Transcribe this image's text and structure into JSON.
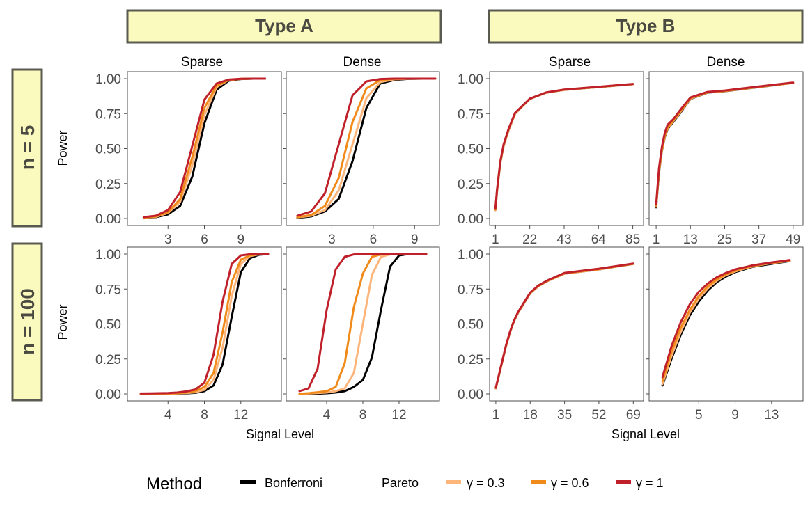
{
  "facet_columns": [
    "Type A",
    "Type B"
  ],
  "facet_rows": [
    "n = 5",
    "n = 100"
  ],
  "subcolumns": [
    "Sparse",
    "Dense"
  ],
  "x_axis_title": "Signal Level",
  "y_axis_title": "Power",
  "legend": {
    "title": "Method",
    "bonferroni_label": "Bonferroni",
    "group_label": "Pareto",
    "gamma_labels": [
      "γ = 0.3",
      "γ = 0.6",
      "γ = 1"
    ]
  },
  "colors": {
    "Bonferroni": "#000000",
    "gamma_0.3": "#fdb57a",
    "gamma_0.6": "#f08a1a",
    "gamma_1": "#c0202a"
  },
  "chart_data": [
    {
      "type": "line",
      "row": "n = 5",
      "column": "Type A",
      "subcolumn": "Sparse",
      "xlim": [
        0,
        12
      ],
      "ylim": [
        0,
        1
      ],
      "x_ticks": [
        3,
        6,
        9
      ],
      "y_ticks": [
        0,
        0.25,
        0.5,
        0.75,
        1
      ],
      "y_tick_labels": [
        "0.00",
        "0.25",
        "0.50",
        "0.75",
        "1.00"
      ],
      "x": [
        1,
        2,
        3,
        4,
        5,
        6,
        7,
        8,
        9,
        10,
        11
      ],
      "series": [
        {
          "name": "Bonferroni",
          "values": [
            0.005,
            0.01,
            0.03,
            0.09,
            0.3,
            0.68,
            0.92,
            0.985,
            0.997,
            1.0,
            1.0
          ]
        },
        {
          "name": "γ = 0.3",
          "values": [
            0.006,
            0.012,
            0.04,
            0.12,
            0.38,
            0.74,
            0.94,
            0.99,
            0.998,
            1.0,
            1.0
          ]
        },
        {
          "name": "γ = 0.6",
          "values": [
            0.007,
            0.015,
            0.045,
            0.14,
            0.44,
            0.79,
            0.95,
            0.99,
            0.999,
            1.0,
            1.0
          ]
        },
        {
          "name": "γ = 1",
          "values": [
            0.01,
            0.02,
            0.06,
            0.19,
            0.52,
            0.85,
            0.965,
            0.993,
            0.999,
            1.0,
            1.0
          ]
        }
      ]
    },
    {
      "type": "line",
      "row": "n = 5",
      "column": "Type A",
      "subcolumn": "Dense",
      "xlim": [
        0,
        10.5
      ],
      "ylim": [
        0,
        1
      ],
      "x_ticks": [
        3,
        6,
        9
      ],
      "y_ticks": [
        0,
        0.25,
        0.5,
        0.75,
        1
      ],
      "x": [
        0.5,
        1.5,
        2.5,
        3.5,
        4.5,
        5.5,
        6.5,
        7.5,
        8.5,
        9.5,
        10.5
      ],
      "series": [
        {
          "name": "Bonferroni",
          "values": [
            0.005,
            0.015,
            0.05,
            0.14,
            0.41,
            0.79,
            0.965,
            0.99,
            0.998,
            1.0,
            1.0
          ]
        },
        {
          "name": "γ = 0.3",
          "values": [
            0.008,
            0.02,
            0.06,
            0.2,
            0.53,
            0.86,
            0.975,
            0.995,
            0.999,
            1.0,
            1.0
          ]
        },
        {
          "name": "γ = 0.6",
          "values": [
            0.01,
            0.025,
            0.09,
            0.29,
            0.69,
            0.93,
            0.99,
            0.998,
            1.0,
            1.0,
            1.0
          ]
        },
        {
          "name": "γ = 1",
          "values": [
            0.02,
            0.05,
            0.18,
            0.53,
            0.88,
            0.98,
            0.997,
            1.0,
            1.0,
            1.0,
            1.0
          ]
        }
      ]
    },
    {
      "type": "line",
      "row": "n = 5",
      "column": "Type B",
      "subcolumn": "Sparse",
      "xlim": [
        0,
        89
      ],
      "ylim": [
        0,
        1
      ],
      "x_ticks": [
        1,
        22,
        43,
        64,
        85
      ],
      "y_ticks": [
        0,
        0.25,
        0.5,
        0.75,
        1
      ],
      "x": [
        1,
        2,
        4,
        6,
        9,
        13,
        22,
        32,
        43,
        64,
        85
      ],
      "series": [
        {
          "name": "Bonferroni",
          "values": [
            0.06,
            0.2,
            0.4,
            0.52,
            0.63,
            0.75,
            0.855,
            0.9,
            0.92,
            0.94,
            0.96
          ]
        },
        {
          "name": "γ = 0.3",
          "values": [
            0.06,
            0.2,
            0.4,
            0.52,
            0.63,
            0.75,
            0.855,
            0.9,
            0.92,
            0.94,
            0.96
          ]
        },
        {
          "name": "γ = 0.6",
          "values": [
            0.065,
            0.205,
            0.405,
            0.525,
            0.635,
            0.752,
            0.856,
            0.9,
            0.921,
            0.941,
            0.961
          ]
        },
        {
          "name": "γ = 1",
          "values": [
            0.07,
            0.21,
            0.41,
            0.53,
            0.64,
            0.755,
            0.857,
            0.901,
            0.922,
            0.942,
            0.962
          ]
        }
      ]
    },
    {
      "type": "line",
      "row": "n = 5",
      "column": "Type B",
      "subcolumn": "Dense",
      "xlim": [
        0,
        51
      ],
      "ylim": [
        0,
        1
      ],
      "x_ticks": [
        1,
        13,
        25,
        37,
        49
      ],
      "y_ticks": [
        0,
        0.25,
        0.5,
        0.75,
        1
      ],
      "x": [
        1,
        2,
        3,
        4,
        5,
        7,
        10,
        13,
        19,
        25,
        37,
        49
      ],
      "series": [
        {
          "name": "Bonferroni",
          "values": [
            0.08,
            0.33,
            0.48,
            0.58,
            0.64,
            0.69,
            0.77,
            0.855,
            0.9,
            0.91,
            0.94,
            0.97
          ]
        },
        {
          "name": "γ = 0.3",
          "values": [
            0.085,
            0.335,
            0.485,
            0.585,
            0.645,
            0.695,
            0.775,
            0.857,
            0.901,
            0.911,
            0.941,
            0.97
          ]
        },
        {
          "name": "γ = 0.6",
          "values": [
            0.09,
            0.34,
            0.49,
            0.59,
            0.65,
            0.7,
            0.78,
            0.86,
            0.902,
            0.912,
            0.942,
            0.97
          ]
        },
        {
          "name": "γ = 1",
          "values": [
            0.1,
            0.36,
            0.51,
            0.61,
            0.67,
            0.71,
            0.79,
            0.865,
            0.905,
            0.915,
            0.944,
            0.972
          ]
        }
      ]
    },
    {
      "type": "line",
      "row": "n = 100",
      "column": "Type A",
      "subcolumn": "Sparse",
      "xlim": [
        0,
        16
      ],
      "ylim": [
        0,
        1
      ],
      "x_ticks": [
        4,
        8,
        12
      ],
      "y_ticks": [
        0,
        0.25,
        0.5,
        0.75,
        1
      ],
      "y_tick_labels": [
        "0.00",
        "0.25",
        "0.50",
        "0.75",
        "1.00"
      ],
      "x": [
        1,
        2,
        3,
        4,
        5,
        6,
        7,
        8,
        9,
        10,
        11,
        12,
        13,
        14,
        15
      ],
      "series": [
        {
          "name": "Bonferroni",
          "values": [
            0.0,
            0.0,
            0.0,
            0.0,
            0.002,
            0.004,
            0.008,
            0.02,
            0.06,
            0.21,
            0.55,
            0.87,
            0.97,
            0.995,
            1.0
          ]
        },
        {
          "name": "γ = 0.3",
          "values": [
            0.0,
            0.0,
            0.001,
            0.002,
            0.003,
            0.006,
            0.012,
            0.03,
            0.1,
            0.33,
            0.7,
            0.93,
            0.985,
            0.998,
            1.0
          ]
        },
        {
          "name": "γ = 0.6",
          "values": [
            0.001,
            0.001,
            0.002,
            0.003,
            0.005,
            0.01,
            0.02,
            0.05,
            0.15,
            0.44,
            0.8,
            0.96,
            0.99,
            0.999,
            1.0
          ]
        },
        {
          "name": "γ = 1",
          "values": [
            0.003,
            0.004,
            0.005,
            0.006,
            0.01,
            0.018,
            0.032,
            0.08,
            0.28,
            0.66,
            0.93,
            0.99,
            0.998,
            1.0,
            1.0
          ]
        }
      ]
    },
    {
      "type": "line",
      "row": "n = 100",
      "column": "Type A",
      "subcolumn": "Dense",
      "xlim": [
        0,
        16
      ],
      "ylim": [
        0,
        1
      ],
      "x_ticks": [
        4,
        8,
        12
      ],
      "y_ticks": [
        0,
        0.25,
        0.5,
        0.75,
        1
      ],
      "x": [
        1,
        2,
        3,
        4,
        5,
        6,
        7,
        8,
        9,
        10,
        11,
        12,
        13,
        14,
        15
      ],
      "series": [
        {
          "name": "Bonferroni",
          "values": [
            0.0,
            0.0,
            0.002,
            0.005,
            0.01,
            0.02,
            0.05,
            0.1,
            0.26,
            0.6,
            0.91,
            0.99,
            1.0,
            1.0,
            1.0
          ]
        },
        {
          "name": "γ = 0.3",
          "values": [
            0.0,
            0.003,
            0.006,
            0.01,
            0.02,
            0.04,
            0.15,
            0.5,
            0.85,
            0.98,
            0.997,
            1.0,
            1.0,
            1.0,
            1.0
          ]
        },
        {
          "name": "γ = 0.6",
          "values": [
            0.001,
            0.005,
            0.012,
            0.02,
            0.05,
            0.22,
            0.62,
            0.86,
            0.98,
            0.997,
            1.0,
            1.0,
            1.0,
            1.0,
            1.0
          ]
        },
        {
          "name": "γ = 1",
          "values": [
            0.02,
            0.04,
            0.18,
            0.6,
            0.89,
            0.98,
            0.997,
            1.0,
            1.0,
            1.0,
            1.0,
            1.0,
            1.0,
            1.0,
            1.0
          ]
        }
      ]
    },
    {
      "type": "line",
      "row": "n = 100",
      "column": "Type B",
      "subcolumn": "Sparse",
      "xlim": [
        0,
        72
      ],
      "ylim": [
        0,
        1
      ],
      "x_ticks": [
        1,
        18,
        35,
        52,
        69
      ],
      "y_ticks": [
        0,
        0.25,
        0.5,
        0.75,
        1
      ],
      "x": [
        1,
        2,
        3,
        4,
        5,
        6,
        7,
        8,
        10,
        12,
        15,
        18,
        22,
        27,
        35,
        52,
        69
      ],
      "series": [
        {
          "name": "Bonferroni",
          "values": [
            0.04,
            0.1,
            0.16,
            0.22,
            0.28,
            0.34,
            0.39,
            0.44,
            0.52,
            0.58,
            0.65,
            0.72,
            0.77,
            0.81,
            0.86,
            0.89,
            0.93
          ]
        },
        {
          "name": "γ = 0.3",
          "values": [
            0.04,
            0.1,
            0.16,
            0.22,
            0.28,
            0.34,
            0.39,
            0.44,
            0.52,
            0.58,
            0.65,
            0.72,
            0.77,
            0.81,
            0.86,
            0.89,
            0.93
          ]
        },
        {
          "name": "γ = 0.6",
          "values": [
            0.042,
            0.102,
            0.162,
            0.222,
            0.282,
            0.342,
            0.392,
            0.442,
            0.522,
            0.582,
            0.652,
            0.722,
            0.772,
            0.812,
            0.862,
            0.892,
            0.93
          ]
        },
        {
          "name": "γ = 1",
          "values": [
            0.045,
            0.105,
            0.165,
            0.225,
            0.285,
            0.345,
            0.395,
            0.445,
            0.525,
            0.585,
            0.655,
            0.725,
            0.775,
            0.815,
            0.865,
            0.895,
            0.932
          ]
        }
      ]
    },
    {
      "type": "line",
      "row": "n = 100",
      "column": "Type B",
      "subcolumn": "Dense",
      "xlim": [
        0,
        16
      ],
      "ylim": [
        0,
        1
      ],
      "x_ticks": [
        5,
        9,
        13
      ],
      "y_ticks": [
        0,
        0.25,
        0.5,
        0.75,
        1
      ],
      "x": [
        1,
        2,
        3,
        4,
        5,
        6,
        7,
        8,
        9,
        10,
        11,
        12,
        13,
        14,
        15
      ],
      "series": [
        {
          "name": "Bonferroni",
          "values": [
            0.06,
            0.25,
            0.42,
            0.56,
            0.66,
            0.74,
            0.8,
            0.84,
            0.87,
            0.89,
            0.91,
            0.92,
            0.93,
            0.94,
            0.95
          ]
        },
        {
          "name": "γ = 0.3",
          "values": [
            0.07,
            0.27,
            0.44,
            0.58,
            0.68,
            0.755,
            0.81,
            0.85,
            0.875,
            0.895,
            0.912,
            0.925,
            0.935,
            0.943,
            0.952
          ]
        },
        {
          "name": "γ = 0.6",
          "values": [
            0.09,
            0.3,
            0.47,
            0.6,
            0.7,
            0.77,
            0.82,
            0.855,
            0.88,
            0.9,
            0.915,
            0.927,
            0.937,
            0.945,
            0.954
          ]
        },
        {
          "name": "γ = 1",
          "values": [
            0.12,
            0.34,
            0.51,
            0.64,
            0.73,
            0.79,
            0.835,
            0.865,
            0.89,
            0.905,
            0.92,
            0.93,
            0.94,
            0.948,
            0.957
          ]
        }
      ]
    }
  ]
}
